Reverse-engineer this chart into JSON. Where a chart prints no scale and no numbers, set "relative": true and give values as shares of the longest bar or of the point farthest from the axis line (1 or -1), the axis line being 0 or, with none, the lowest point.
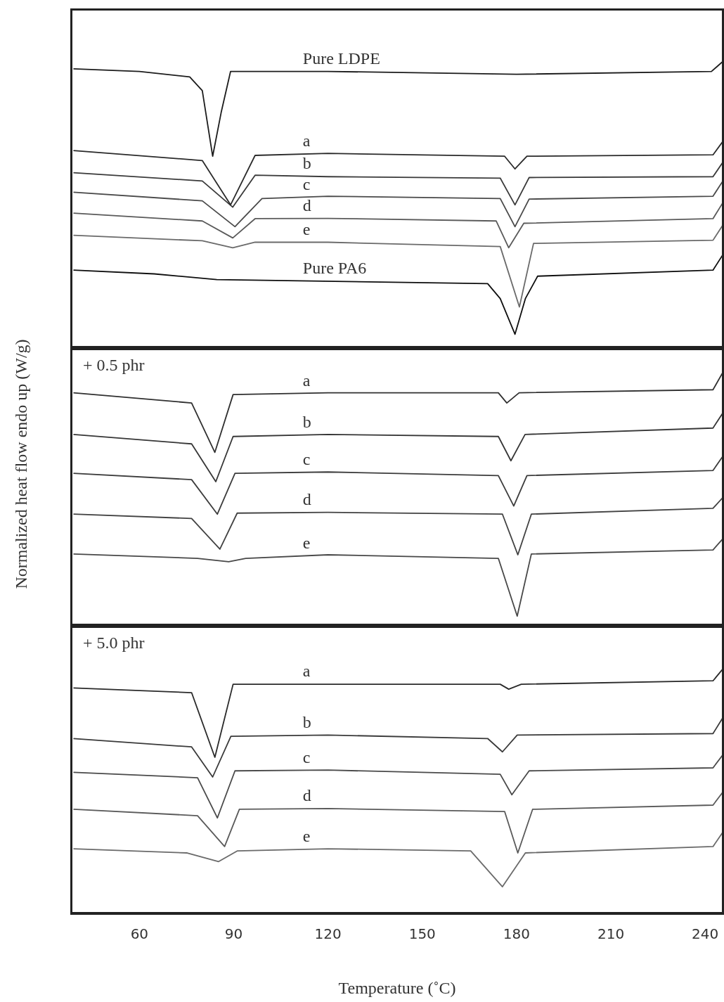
{
  "chart_data": [
    {
      "type": "line",
      "relative": true,
      "xlim": [
        38,
        246
      ],
      "tick_labels": false,
      "legend": false,
      "grid": false,
      "series": [
        {
          "name": "Pure LDPE",
          "color": "#1c1c1c",
          "x": [
            39,
            60,
            76,
            80,
            83.3,
            86,
            89,
            120,
            180,
            242,
            246
          ],
          "values": [
            0.971,
            0.962,
            0.943,
            0.895,
            0.667,
            0.819,
            0.962,
            0.962,
            0.952,
            0.962,
            1.0
          ]
        },
        {
          "name": "a",
          "color": "#2a2a2a",
          "x": [
            39,
            80,
            89,
            96.8,
            120,
            176.2,
            179.5,
            183.3,
            242.5,
            246
          ],
          "values": [
            0.687,
            0.652,
            0.498,
            0.67,
            0.677,
            0.667,
            0.623,
            0.667,
            0.672,
            0.724
          ]
        },
        {
          "name": "b",
          "color": "#3a3a3a",
          "x": [
            39,
            80,
            89.7,
            96.8,
            120,
            174.8,
            179.5,
            184,
            242.5,
            246
          ],
          "values": [
            0.61,
            0.581,
            0.49,
            0.601,
            0.596,
            0.591,
            0.498,
            0.593,
            0.596,
            0.652
          ]
        },
        {
          "name": "c",
          "color": "#4a4a4a",
          "x": [
            39,
            80,
            90.4,
            99,
            120,
            174.8,
            179.5,
            184,
            242.5,
            246
          ],
          "values": [
            0.542,
            0.512,
            0.422,
            0.52,
            0.528,
            0.52,
            0.422,
            0.518,
            0.528,
            0.587
          ]
        },
        {
          "name": "d",
          "color": "#5a5a5a",
          "x": [
            39,
            80,
            89.7,
            96.8,
            120,
            173.5,
            177.5,
            182.3,
            242.5,
            246
          ],
          "values": [
            0.469,
            0.442,
            0.383,
            0.45,
            0.451,
            0.442,
            0.349,
            0.434,
            0.45,
            0.512
          ]
        },
        {
          "name": "e",
          "color": "#6a6a6a",
          "x": [
            39,
            80,
            89.7,
            96.8,
            120,
            174.8,
            180.9,
            185.4,
            242.5,
            246
          ],
          "values": [
            0.392,
            0.373,
            0.349,
            0.368,
            0.368,
            0.353,
            0.143,
            0.364,
            0.375,
            0.434
          ]
        },
        {
          "name": "Pure PA6",
          "color": "#0e0e0e",
          "x": [
            39,
            64.7,
            84.6,
            170.8,
            174.8,
            179.5,
            182.8,
            186.7,
            242.5,
            246
          ],
          "values": [
            0.271,
            0.258,
            0.238,
            0.224,
            0.172,
            0.048,
            0.172,
            0.25,
            0.271,
            0.331
          ]
        }
      ]
    },
    {
      "type": "line",
      "relative": true,
      "title": "+ 0.5 phr",
      "ylabel": "Normalized heat flow endo up (W/g)",
      "xlim": [
        38,
        246
      ],
      "tick_labels": false,
      "legend": false,
      "grid": false,
      "series": [
        {
          "name": "a",
          "color": "#303030",
          "x": [
            39,
            76.6,
            84,
            89.8,
            120,
            174.2,
            176.9,
            180.8,
            242.5,
            246
          ],
          "values": [
            0.912,
            0.872,
            0.679,
            0.905,
            0.912,
            0.912,
            0.872,
            0.912,
            0.924,
            1.0
          ]
        },
        {
          "name": "b",
          "color": "#363636",
          "x": [
            39,
            76.6,
            84.3,
            89.8,
            120,
            174.2,
            178.2,
            182.7,
            242.5,
            246
          ],
          "values": [
            0.749,
            0.712,
            0.564,
            0.741,
            0.749,
            0.741,
            0.646,
            0.749,
            0.774,
            0.84
          ]
        },
        {
          "name": "c",
          "color": "#3c3c3c",
          "x": [
            39,
            76.6,
            84.8,
            90.4,
            120,
            174.2,
            179.1,
            183.3,
            242.5,
            246
          ],
          "values": [
            0.597,
            0.572,
            0.437,
            0.597,
            0.602,
            0.588,
            0.469,
            0.588,
            0.608,
            0.67
          ]
        },
        {
          "name": "d",
          "color": "#424242",
          "x": [
            39,
            76.6,
            85.6,
            91.1,
            120,
            175.5,
            180.4,
            184.7,
            242.5,
            246
          ],
          "values": [
            0.437,
            0.42,
            0.3,
            0.441,
            0.444,
            0.437,
            0.278,
            0.437,
            0.46,
            0.507
          ]
        },
        {
          "name": "e",
          "color": "#484848",
          "x": [
            39,
            78.5,
            88.4,
            93.8,
            120,
            174.2,
            180.2,
            184.7,
            242.5,
            246
          ],
          "values": [
            0.281,
            0.264,
            0.251,
            0.264,
            0.278,
            0.264,
            0.038,
            0.281,
            0.297,
            0.346
          ]
        }
      ]
    },
    {
      "type": "line",
      "relative": true,
      "title": "+ 5.0 phr",
      "xlabel": "Temperature (˚C)",
      "xlim": [
        38,
        246
      ],
      "xticks": [
        60,
        90,
        120,
        150,
        180,
        210,
        240
      ],
      "tick_labels": "x",
      "legend": false,
      "grid": false,
      "series": [
        {
          "name": "a",
          "color": "#2a2a2a",
          "x": [
            39,
            76.6,
            84,
            89.8,
            120,
            174.8,
            177.5,
            181.5,
            242.5,
            246
          ],
          "values": [
            0.917,
            0.898,
            0.636,
            0.932,
            0.932,
            0.932,
            0.912,
            0.932,
            0.946,
            1.0
          ]
        },
        {
          "name": "b",
          "color": "#3a3a3a",
          "x": [
            39,
            76.6,
            83.3,
            89.1,
            120,
            170.8,
            175.5,
            180.2,
            242.5,
            246
          ],
          "values": [
            0.712,
            0.678,
            0.556,
            0.721,
            0.726,
            0.712,
            0.658,
            0.726,
            0.732,
            0.804
          ]
        },
        {
          "name": "c",
          "color": "#4a4a4a",
          "x": [
            39,
            78.5,
            84.8,
            90.4,
            120,
            174.8,
            178.5,
            184,
            242.5,
            246
          ],
          "values": [
            0.575,
            0.553,
            0.39,
            0.581,
            0.584,
            0.567,
            0.484,
            0.581,
            0.593,
            0.652
          ]
        },
        {
          "name": "d",
          "color": "#5a5a5a",
          "x": [
            39,
            78.5,
            87.1,
            91.8,
            120,
            176.2,
            180.4,
            185.1,
            242.5,
            246
          ],
          "values": [
            0.425,
            0.399,
            0.274,
            0.425,
            0.428,
            0.416,
            0.248,
            0.425,
            0.442,
            0.501
          ]
        },
        {
          "name": "e",
          "color": "#6a6a6a",
          "x": [
            39,
            75.2,
            85.2,
            91.1,
            120,
            165.4,
            175.5,
            182.8,
            242.5,
            246
          ],
          "values": [
            0.265,
            0.248,
            0.213,
            0.256,
            0.265,
            0.256,
            0.111,
            0.248,
            0.274,
            0.339
          ]
        }
      ]
    }
  ]
}
